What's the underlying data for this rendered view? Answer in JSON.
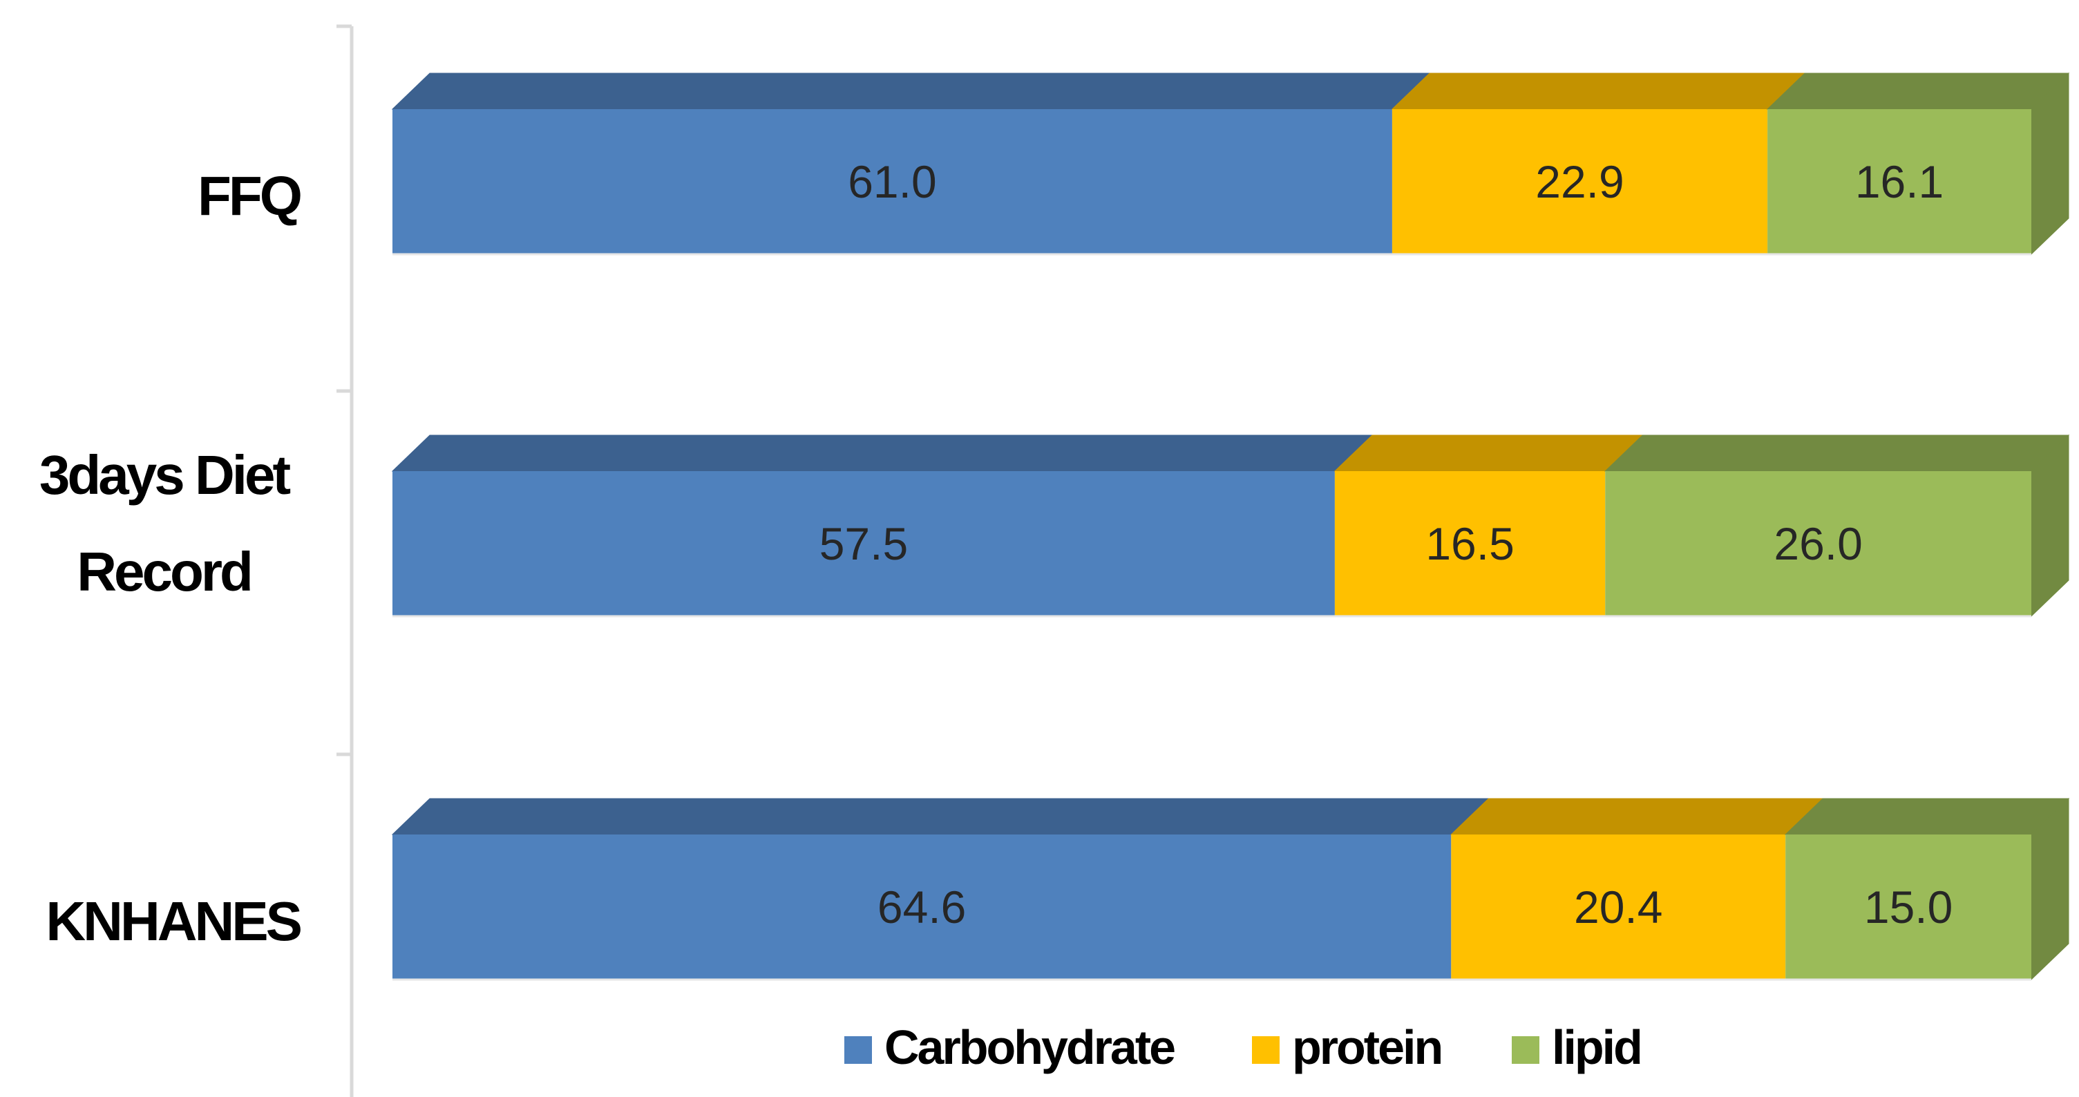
{
  "chart_data": {
    "type": "bar",
    "orientation": "horizontal",
    "stacked": true,
    "style": "3d",
    "categories": [
      "FFQ",
      "3days Diet Record",
      "KNHANES"
    ],
    "category_lines": [
      [
        "FFQ"
      ],
      [
        "3days Diet",
        "Record"
      ],
      [
        "KNHANES"
      ]
    ],
    "series": [
      {
        "name": "Carbohydrate",
        "values": [
          61.0,
          57.5,
          64.6
        ],
        "labels": [
          "61.0",
          "57.5",
          "64.6"
        ],
        "color": "#4f81bd",
        "top_color": "#3c618f",
        "side_color": "#3c618f"
      },
      {
        "name": "protein",
        "values": [
          22.9,
          16.5,
          20.4
        ],
        "labels": [
          "22.9",
          "16.5",
          "20.4"
        ],
        "color": "#ffc000",
        "top_color": "#c39200",
        "side_color": "#c39200"
      },
      {
        "name": "lipid",
        "values": [
          16.1,
          26.0,
          15.0
        ],
        "labels": [
          "16.1",
          "26.0",
          "15.0"
        ],
        "color": "#9bbb59",
        "top_color": "#728a41",
        "side_color": "#728a41"
      }
    ],
    "xlim": [
      0,
      100
    ],
    "grid": false,
    "legend_position": "bottom",
    "axis_color": "#d9d9d9",
    "title": "",
    "xlabel": "",
    "ylabel": ""
  }
}
